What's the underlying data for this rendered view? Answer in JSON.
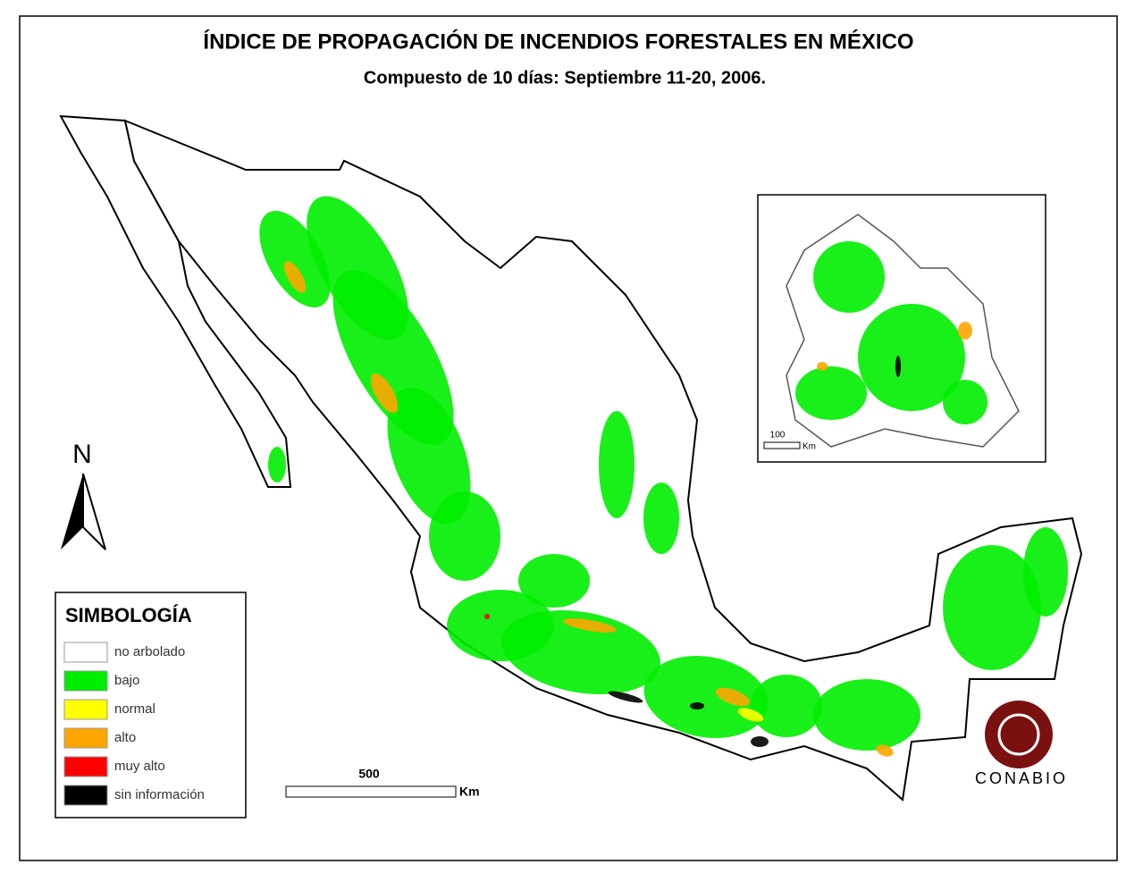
{
  "title": "ÍNDICE DE PROPAGACIÓN DE INCENDIOS FORESTALES EN MÉXICO",
  "subtitle": "Compuesto de 10 días: Septiembre 11-20, 2006.",
  "north": "N",
  "legend": {
    "title": "SIMBOLOGÍA",
    "items": [
      {
        "label": "no arbolado",
        "color": "#ffffff"
      },
      {
        "label": "bajo",
        "color": "#00ee00"
      },
      {
        "label": "normal",
        "color": "#ffff00"
      },
      {
        "label": "alto",
        "color": "#ffa500"
      },
      {
        "label": "muy alto",
        "color": "#ff0000"
      },
      {
        "label": "sin información",
        "color": "#000000"
      }
    ]
  },
  "scale_bar": {
    "label": "500",
    "unit": "Km"
  },
  "inset": {
    "scale_label": "100",
    "unit": "Km"
  },
  "logo": "CONABIO"
}
